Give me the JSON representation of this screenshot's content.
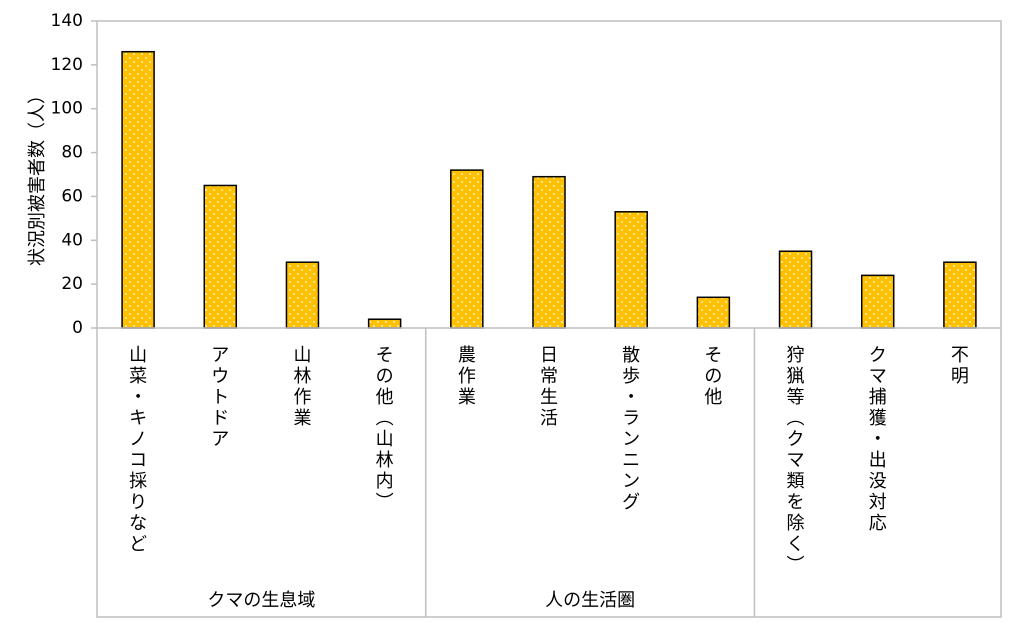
{
  "chart_data": {
    "type": "bar",
    "ylabel": "状況別被害者数（人）",
    "ylim": [
      0,
      140
    ],
    "yticks": [
      0,
      20,
      40,
      60,
      80,
      100,
      120,
      140
    ],
    "grid": false,
    "legend": "none",
    "bar_color": "#FFC000",
    "bar_edge_color": "#000000",
    "bar_pattern": "white-dots",
    "categories": [
      "山菜・キノコ採りなど",
      "アウトドア",
      "山林作業",
      "その他（山林内）",
      "農作業",
      "日常生活",
      "散歩・ランニング",
      "その他",
      "狩猟等（クマ類を除く）",
      "クマ捕獲・出没対応",
      "不明"
    ],
    "values": [
      126,
      65,
      30,
      4,
      72,
      69,
      53,
      14,
      35,
      24,
      30
    ],
    "groups": [
      {
        "label": "クマの生息域",
        "start": 0,
        "end": 3
      },
      {
        "label": "人の生活圏",
        "start": 4,
        "end": 7
      },
      {
        "label": "",
        "start": 8,
        "end": 10
      }
    ]
  }
}
